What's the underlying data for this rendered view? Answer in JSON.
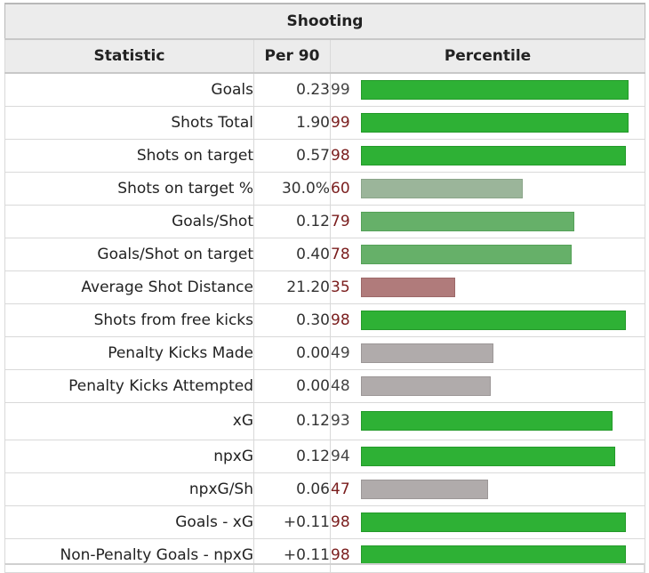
{
  "table": {
    "caption": "Shooting",
    "headers": {
      "statistic": "Statistic",
      "per90": "Per 90",
      "percentile": "Percentile"
    }
  },
  "colors": {
    "elite_fill": "#2eb135",
    "elite_border": "#249a2a",
    "good_fill": "#66b069",
    "good_border": "#55a158",
    "above_fill": "#9bb59a",
    "above_border": "#8ba58a",
    "average_fill": "#b0abab",
    "average_border": "#9c9797",
    "below_fill": "#b07b7b",
    "below_border": "#9c6868",
    "pct_text_red": "#7a1d1d",
    "pct_text_grey": "#444444"
  },
  "rows": [
    {
      "stat": "Goals",
      "per90": "0.23",
      "percentile": 99,
      "band": "elite",
      "pct_color": "grey"
    },
    {
      "stat": "Shots Total",
      "per90": "1.90",
      "percentile": 99,
      "band": "elite",
      "pct_color": "red"
    },
    {
      "stat": "Shots on target",
      "per90": "0.57",
      "percentile": 98,
      "band": "elite",
      "pct_color": "red"
    },
    {
      "stat": "Shots on target %",
      "per90": "30.0%",
      "percentile": 60,
      "band": "above",
      "pct_color": "red"
    },
    {
      "stat": "Goals/Shot",
      "per90": "0.12",
      "percentile": 79,
      "band": "good",
      "pct_color": "red"
    },
    {
      "stat": "Goals/Shot on target",
      "per90": "0.40",
      "percentile": 78,
      "band": "good",
      "pct_color": "red"
    },
    {
      "stat": "Average Shot Distance",
      "per90": "21.20",
      "percentile": 35,
      "band": "below",
      "pct_color": "red"
    },
    {
      "stat": "Shots from free kicks",
      "per90": "0.30",
      "percentile": 98,
      "band": "elite",
      "pct_color": "red"
    },
    {
      "stat": "Penalty Kicks Made",
      "per90": "0.00",
      "percentile": 49,
      "band": "average",
      "pct_color": "grey"
    },
    {
      "stat": "Penalty Kicks Attempted",
      "per90": "0.00",
      "percentile": 48,
      "band": "average",
      "pct_color": "grey"
    },
    {
      "stat": "xG",
      "per90": "0.12",
      "percentile": 93,
      "band": "elite",
      "pct_color": "grey"
    },
    {
      "stat": "npxG",
      "per90": "0.12",
      "percentile": 94,
      "band": "elite",
      "pct_color": "grey"
    },
    {
      "stat": "npxG/Sh",
      "per90": "0.06",
      "percentile": 47,
      "band": "average",
      "pct_color": "red"
    },
    {
      "stat": "Goals - xG",
      "per90": "+0.11",
      "percentile": 98,
      "band": "elite",
      "pct_color": "red"
    },
    {
      "stat": "Non-Penalty Goals - npxG",
      "per90": "+0.11",
      "percentile": 98,
      "band": "elite",
      "pct_color": "red"
    }
  ]
}
